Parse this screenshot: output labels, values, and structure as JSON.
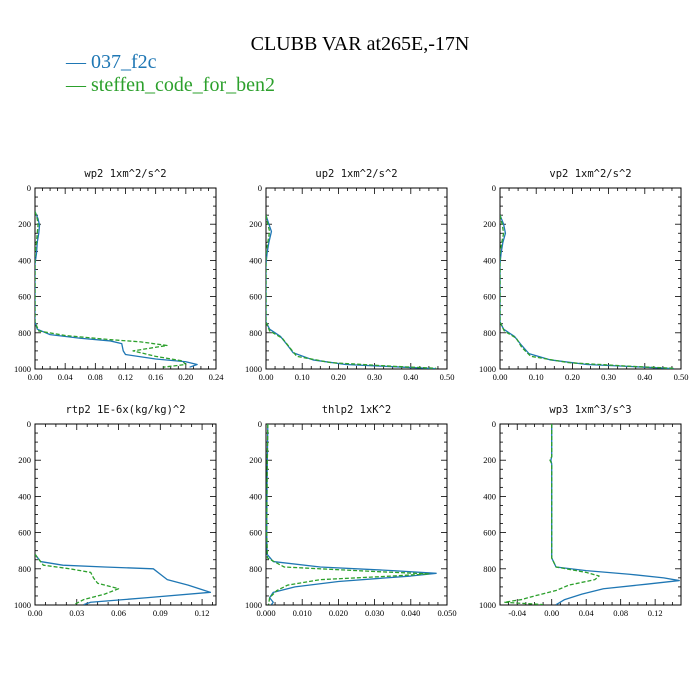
{
  "figure": {
    "title": "CLUBB VAR at265E,-17N",
    "legend": [
      {
        "label": "— 037_f2c",
        "color": "#1f77b4"
      },
      {
        "label": "— steffen_code_for_ben2",
        "color": "#2ca02c"
      }
    ]
  },
  "chart_data": [
    {
      "type": "line",
      "title": "wp2   1xm^2/s^2",
      "xlim": [
        0,
        0.24
      ],
      "ylim": [
        0,
        1000
      ],
      "y_inverted": true,
      "xticks": [
        0,
        0.04,
        0.08,
        0.12,
        0.16,
        0.2,
        0.24
      ],
      "xtick_labels": [
        "0.00",
        "0.04",
        "0.08",
        "0.12",
        "0.16",
        "0.20",
        "0.24"
      ],
      "yticks": [
        0,
        200,
        400,
        600,
        800,
        1000
      ],
      "ytick_labels": [
        "0",
        "200",
        "400",
        "600",
        "800",
        "1000"
      ],
      "series": [
        {
          "name": "037_f2c",
          "color": "#1f77b4",
          "dash": false,
          "points": [
            [
              0,
              130
            ],
            [
              0.004,
              170
            ],
            [
              0.006,
              205
            ],
            [
              0.005,
              250
            ],
            [
              0.003,
              300
            ],
            [
              0.002,
              360
            ],
            [
              0,
              420
            ],
            [
              0,
              740
            ],
            [
              0.003,
              780
            ],
            [
              0.02,
              810
            ],
            [
              0.06,
              830
            ],
            [
              0.1,
              845
            ],
            [
              0.115,
              860
            ],
            [
              0.117,
              900
            ],
            [
              0.12,
              920
            ],
            [
              0.16,
              945
            ],
            [
              0.2,
              960
            ],
            [
              0.215,
              975
            ],
            [
              0.205,
              990
            ]
          ]
        },
        {
          "name": "steffen_code_for_ben2",
          "color": "#2ca02c",
          "dash": true,
          "points": [
            [
              0,
              130
            ],
            [
              0.003,
              170
            ],
            [
              0.004,
              205
            ],
            [
              0.003,
              250
            ],
            [
              0.002,
              300
            ],
            [
              0,
              360
            ],
            [
              0,
              740
            ],
            [
              0.005,
              790
            ],
            [
              0.04,
              815
            ],
            [
              0.1,
              838
            ],
            [
              0.14,
              850
            ],
            [
              0.175,
              870
            ],
            [
              0.13,
              900
            ],
            [
              0.16,
              930
            ],
            [
              0.195,
              955
            ],
            [
              0.2,
              975
            ],
            [
              0.17,
              990
            ]
          ]
        }
      ]
    },
    {
      "type": "line",
      "title": "up2   1xm^2/s^2",
      "xlim": [
        0,
        0.5
      ],
      "ylim": [
        0,
        1000
      ],
      "y_inverted": true,
      "xticks": [
        0,
        0.1,
        0.2,
        0.3,
        0.4,
        0.5
      ],
      "xtick_labels": [
        "0.00",
        "0.10",
        "0.20",
        "0.30",
        "0.40",
        "0.50"
      ],
      "yticks": [
        0,
        200,
        400,
        600,
        800,
        1000
      ],
      "ytick_labels": [
        "0",
        "200",
        "400",
        "600",
        "800",
        "1000"
      ],
      "series": [
        {
          "name": "037_f2c",
          "color": "#1f77b4",
          "dash": false,
          "points": [
            [
              0,
              150
            ],
            [
              0.008,
              200
            ],
            [
              0.015,
              240
            ],
            [
              0.008,
              300
            ],
            [
              0.003,
              360
            ],
            [
              0,
              420
            ],
            [
              0,
              740
            ],
            [
              0.01,
              780
            ],
            [
              0.04,
              820
            ],
            [
              0.06,
              870
            ],
            [
              0.075,
              910
            ],
            [
              0.13,
              950
            ],
            [
              0.22,
              975
            ],
            [
              0.38,
              990
            ],
            [
              0.47,
              998
            ]
          ]
        },
        {
          "name": "steffen_code_for_ben2",
          "color": "#2ca02c",
          "dash": true,
          "points": [
            [
              0,
              150
            ],
            [
              0.005,
              200
            ],
            [
              0.01,
              240
            ],
            [
              0.005,
              300
            ],
            [
              0,
              360
            ],
            [
              0,
              740
            ],
            [
              0.01,
              790
            ],
            [
              0.045,
              830
            ],
            [
              0.065,
              880
            ],
            [
              0.085,
              930
            ],
            [
              0.18,
              965
            ],
            [
              0.35,
              985
            ],
            [
              0.47,
              996
            ]
          ]
        }
      ]
    },
    {
      "type": "line",
      "title": "vp2   1xm^2/s^2",
      "xlim": [
        0,
        0.5
      ],
      "ylim": [
        0,
        1000
      ],
      "y_inverted": true,
      "xticks": [
        0,
        0.1,
        0.2,
        0.3,
        0.4,
        0.5
      ],
      "xtick_labels": [
        "0.00",
        "0.10",
        "0.20",
        "0.30",
        "0.40",
        "0.50"
      ],
      "yticks": [
        0,
        200,
        400,
        600,
        800,
        1000
      ],
      "ytick_labels": [
        "0",
        "200",
        "400",
        "600",
        "800",
        "1000"
      ],
      "series": [
        {
          "name": "037_f2c",
          "color": "#1f77b4",
          "dash": false,
          "points": [
            [
              0,
              150
            ],
            [
              0.01,
              200
            ],
            [
              0.015,
              250
            ],
            [
              0.008,
              300
            ],
            [
              0.003,
              360
            ],
            [
              0,
              420
            ],
            [
              0,
              740
            ],
            [
              0.01,
              780
            ],
            [
              0.04,
              820
            ],
            [
              0.06,
              870
            ],
            [
              0.08,
              915
            ],
            [
              0.14,
              950
            ],
            [
              0.24,
              975
            ],
            [
              0.4,
              990
            ],
            [
              0.48,
              998
            ]
          ]
        },
        {
          "name": "steffen_code_for_ben2",
          "color": "#2ca02c",
          "dash": true,
          "points": [
            [
              0,
              150
            ],
            [
              0.006,
              200
            ],
            [
              0.01,
              250
            ],
            [
              0.005,
              300
            ],
            [
              0,
              360
            ],
            [
              0,
              740
            ],
            [
              0.012,
              790
            ],
            [
              0.045,
              830
            ],
            [
              0.06,
              880
            ],
            [
              0.085,
              930
            ],
            [
              0.19,
              965
            ],
            [
              0.36,
              985
            ],
            [
              0.48,
              996
            ]
          ]
        }
      ]
    },
    {
      "type": "line",
      "title": "rtp2   1E-6x(kg/kg)^2",
      "xlim": [
        0,
        0.13
      ],
      "ylim": [
        0,
        1000
      ],
      "y_inverted": true,
      "xticks": [
        0,
        0.03,
        0.06,
        0.09,
        0.12
      ],
      "xtick_labels": [
        "0.00",
        "0.03",
        "0.06",
        "0.09",
        "0.12"
      ],
      "yticks": [
        0,
        200,
        400,
        600,
        800,
        1000
      ],
      "ytick_labels": [
        "0",
        "200",
        "400",
        "600",
        "800",
        "1000"
      ],
      "series": [
        {
          "name": "037_f2c",
          "color": "#1f77b4",
          "dash": false,
          "points": [
            [
              0,
              720
            ],
            [
              0.004,
              760
            ],
            [
              0.02,
              780
            ],
            [
              0.05,
              790
            ],
            [
              0.085,
              800
            ],
            [
              0.09,
              830
            ],
            [
              0.095,
              860
            ],
            [
              0.11,
              890
            ],
            [
              0.126,
              930
            ],
            [
              0.08,
              960
            ],
            [
              0.04,
              985
            ],
            [
              0.035,
              998
            ]
          ]
        },
        {
          "name": "steffen_code_for_ben2",
          "color": "#2ca02c",
          "dash": true,
          "points": [
            [
              0,
              720
            ],
            [
              0.006,
              780
            ],
            [
              0.025,
              800
            ],
            [
              0.04,
              820
            ],
            [
              0.042,
              850
            ],
            [
              0.045,
              880
            ],
            [
              0.06,
              910
            ],
            [
              0.05,
              940
            ],
            [
              0.035,
              970
            ],
            [
              0.03,
              990
            ],
            [
              0.028,
              998
            ]
          ]
        }
      ]
    },
    {
      "type": "line",
      "title": "thlp2   1xK^2",
      "xlim": [
        0,
        0.05
      ],
      "ylim": [
        0,
        1000
      ],
      "y_inverted": true,
      "xticks": [
        0,
        0.01,
        0.02,
        0.03,
        0.04,
        0.05
      ],
      "xtick_labels": [
        "0.000",
        "0.010",
        "0.020",
        "0.030",
        "0.040",
        "0.050"
      ],
      "yticks": [
        0,
        200,
        400,
        600,
        800,
        1000
      ],
      "ytick_labels": [
        "0",
        "200",
        "400",
        "600",
        "800",
        "1000"
      ],
      "series": [
        {
          "name": "037_f2c",
          "color": "#1f77b4",
          "dash": false,
          "points": [
            [
              0.0005,
              0
            ],
            [
              0.0003,
              300
            ],
            [
              0.0002,
              600
            ],
            [
              0.0003,
              720
            ],
            [
              0.002,
              760
            ],
            [
              0.015,
              790
            ],
            [
              0.035,
              810
            ],
            [
              0.047,
              825
            ],
            [
              0.04,
              840
            ],
            [
              0.02,
              870
            ],
            [
              0.008,
              900
            ],
            [
              0.002,
              930
            ],
            [
              0.001,
              960
            ],
            [
              0.002,
              985
            ],
            [
              0.0015,
              998
            ]
          ]
        },
        {
          "name": "steffen_code_for_ben2",
          "color": "#2ca02c",
          "dash": true,
          "points": [
            [
              0.0005,
              0
            ],
            [
              0.0003,
              300
            ],
            [
              0.0002,
              600
            ],
            [
              0.0004,
              740
            ],
            [
              0.005,
              790
            ],
            [
              0.03,
              815
            ],
            [
              0.045,
              828
            ],
            [
              0.035,
              840
            ],
            [
              0.015,
              860
            ],
            [
              0.006,
              890
            ],
            [
              0.003,
              920
            ],
            [
              0.001,
              960
            ],
            [
              0.0008,
              985
            ],
            [
              0.0007,
              998
            ]
          ]
        }
      ]
    },
    {
      "type": "line",
      "title": "wp3   1xm^3/s^3",
      "xlim": [
        -0.06,
        0.15
      ],
      "ylim": [
        0,
        1000
      ],
      "y_inverted": true,
      "xticks": [
        -0.04,
        0,
        0.04,
        0.08,
        0.12
      ],
      "xtick_labels": [
        "-0.04",
        "0.00",
        "0.04",
        "0.08",
        "0.12"
      ],
      "yticks": [
        0,
        200,
        400,
        600,
        800,
        1000
      ],
      "ytick_labels": [
        "0",
        "200",
        "400",
        "600",
        "800",
        "1000"
      ],
      "series": [
        {
          "name": "037_f2c",
          "color": "#1f77b4",
          "dash": false,
          "points": [
            [
              0,
              0
            ],
            [
              0,
              180
            ],
            [
              -0.001,
              200
            ],
            [
              0,
              220
            ],
            [
              0,
              740
            ],
            [
              0.005,
              790
            ],
            [
              0.04,
              810
            ],
            [
              0.09,
              830
            ],
            [
              0.13,
              850
            ],
            [
              0.148,
              865
            ],
            [
              0.11,
              885
            ],
            [
              0.06,
              910
            ],
            [
              0.035,
              940
            ],
            [
              0.015,
              970
            ],
            [
              0.008,
              990
            ],
            [
              0.005,
              998
            ]
          ]
        },
        {
          "name": "steffen_code_for_ben2",
          "color": "#2ca02c",
          "dash": true,
          "points": [
            [
              0,
              0
            ],
            [
              0,
              180
            ],
            [
              -0.002,
              200
            ],
            [
              0,
              220
            ],
            [
              0,
              740
            ],
            [
              0.005,
              790
            ],
            [
              0.04,
              820
            ],
            [
              0.055,
              840
            ],
            [
              0.05,
              860
            ],
            [
              0.02,
              890
            ],
            [
              0.005,
              920
            ],
            [
              -0.02,
              950
            ],
            [
              -0.035,
              970
            ],
            [
              -0.055,
              985
            ],
            [
              -0.03,
              992
            ],
            [
              -0.01,
              998
            ]
          ]
        }
      ]
    }
  ]
}
